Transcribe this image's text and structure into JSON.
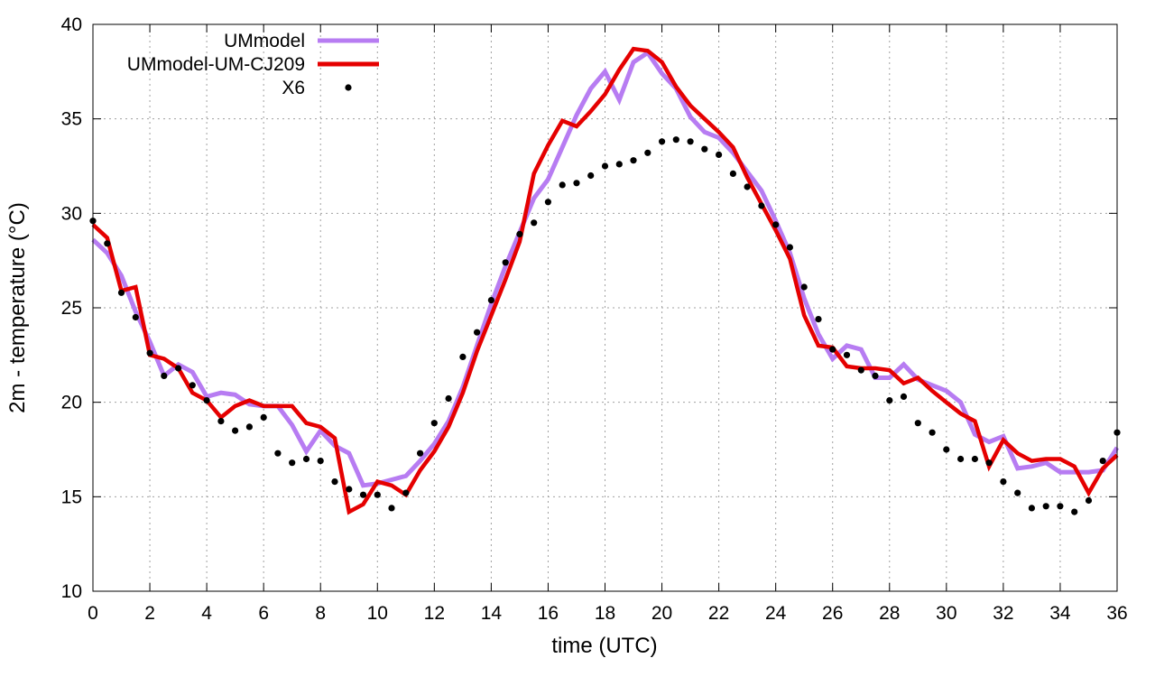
{
  "chart_data": {
    "type": "line",
    "xlabel": "time (UTC)",
    "ylabel": "2m - temperature (°C)",
    "xlim": [
      0,
      36
    ],
    "ylim": [
      10,
      40
    ],
    "xticks": [
      0,
      2,
      4,
      6,
      8,
      10,
      12,
      14,
      16,
      18,
      20,
      22,
      24,
      26,
      28,
      30,
      32,
      34,
      36
    ],
    "yticks": [
      10,
      15,
      20,
      25,
      30,
      35,
      40
    ],
    "grid": true,
    "legend_position": "top-left inside",
    "series": [
      {
        "name": "UMmodel",
        "style": "line",
        "color": "#b77cf2",
        "x": [
          0,
          0.5,
          1,
          1.5,
          2,
          2.5,
          3,
          3.5,
          4,
          4.5,
          5,
          5.5,
          6,
          6.5,
          7,
          7.5,
          8,
          8.5,
          9,
          9.5,
          10,
          10.5,
          11,
          11.5,
          12,
          12.5,
          13,
          13.5,
          14,
          14.5,
          15,
          15.5,
          16,
          16.5,
          17,
          17.5,
          18,
          18.5,
          19,
          19.5,
          20,
          20.5,
          21,
          21.5,
          22,
          22.5,
          23,
          23.5,
          24,
          24.5,
          25,
          25.5,
          26,
          26.5,
          27,
          27.5,
          28,
          28.5,
          29,
          29.5,
          30,
          30.5,
          31,
          31.5,
          32,
          32.5,
          33,
          33.5,
          34,
          34.5,
          35,
          35.5,
          36
        ],
        "y": [
          28.6,
          27.9,
          26.7,
          24.8,
          23.2,
          21.4,
          22.0,
          21.6,
          20.3,
          20.5,
          20.4,
          19.9,
          19.8,
          19.8,
          18.8,
          17.4,
          18.5,
          17.7,
          17.3,
          15.6,
          15.7,
          15.9,
          16.1,
          16.9,
          17.8,
          19.0,
          20.8,
          23.0,
          25.2,
          27.2,
          29.0,
          30.8,
          31.8,
          33.5,
          35.2,
          36.6,
          37.5,
          36.0,
          38.0,
          38.5,
          37.4,
          36.6,
          35.1,
          34.3,
          34.0,
          33.2,
          32.2,
          31.2,
          29.6,
          27.9,
          25.5,
          23.6,
          22.3,
          23.0,
          22.8,
          21.3,
          21.3,
          22.0,
          21.2,
          20.9,
          20.6,
          20.0,
          18.3,
          17.9,
          18.2,
          16.5,
          16.6,
          16.8,
          16.3,
          16.3,
          16.3,
          16.4,
          17.6
        ]
      },
      {
        "name": "UMmodel-UM-CJ209",
        "style": "line",
        "color": "#e50000",
        "x": [
          0,
          0.5,
          1,
          1.5,
          2,
          2.5,
          3,
          3.5,
          4,
          4.5,
          5,
          5.5,
          6,
          6.5,
          7,
          7.5,
          8,
          8.5,
          9,
          9.5,
          10,
          10.5,
          11,
          11.5,
          12,
          12.5,
          13,
          13.5,
          14,
          14.5,
          15,
          15.5,
          16,
          16.5,
          17,
          17.5,
          18,
          18.5,
          19,
          19.5,
          20,
          20.5,
          21,
          21.5,
          22,
          22.5,
          23,
          23.5,
          24,
          24.5,
          25,
          25.5,
          26,
          26.5,
          27,
          27.5,
          28,
          28.5,
          29,
          29.5,
          30,
          30.5,
          31,
          31.5,
          32,
          32.5,
          33,
          33.5,
          34,
          34.5,
          35,
          35.5,
          36
        ],
        "y": [
          29.4,
          28.7,
          25.9,
          26.1,
          22.5,
          22.3,
          21.8,
          20.5,
          20.1,
          19.2,
          19.8,
          20.1,
          19.8,
          19.8,
          19.8,
          18.9,
          18.7,
          18.1,
          14.2,
          14.6,
          15.8,
          15.6,
          15.1,
          16.4,
          17.4,
          18.7,
          20.5,
          22.7,
          24.6,
          26.5,
          28.5,
          32.1,
          33.6,
          34.9,
          34.6,
          35.4,
          36.3,
          37.6,
          38.7,
          38.6,
          38.0,
          36.7,
          35.7,
          35.0,
          34.3,
          33.5,
          31.9,
          30.5,
          29.1,
          27.6,
          24.6,
          23.0,
          22.9,
          21.9,
          21.8,
          21.8,
          21.7,
          21.0,
          21.3,
          20.6,
          20.0,
          19.4,
          19.0,
          16.6,
          18.0,
          17.3,
          16.9,
          17.0,
          17.0,
          16.6,
          15.2,
          16.5,
          17.2
        ]
      },
      {
        "name": "X6",
        "style": "points",
        "color": "#000000",
        "x": [
          0,
          0.5,
          1,
          1.5,
          2,
          2.5,
          3,
          3.5,
          4,
          4.5,
          5,
          5.5,
          6,
          6.5,
          7,
          7.5,
          8,
          8.5,
          9,
          9.5,
          10,
          10.5,
          11,
          11.5,
          12,
          12.5,
          13,
          13.5,
          14,
          14.5,
          15,
          15.5,
          16,
          16.5,
          17,
          17.5,
          18,
          18.5,
          19,
          19.5,
          20,
          20.5,
          21,
          21.5,
          22,
          22.5,
          23,
          23.5,
          24,
          24.5,
          25,
          25.5,
          26,
          26.5,
          27,
          27.5,
          28,
          28.5,
          29,
          29.5,
          30,
          30.5,
          31,
          31.5,
          32,
          32.5,
          33,
          33.5,
          34,
          34.5,
          35,
          35.5,
          36
        ],
        "y": [
          29.6,
          28.4,
          25.8,
          24.5,
          22.6,
          21.4,
          21.8,
          20.9,
          20.1,
          19.0,
          18.5,
          18.7,
          19.2,
          17.3,
          16.8,
          17.0,
          16.9,
          15.8,
          15.4,
          15.1,
          15.1,
          14.4,
          15.2,
          17.3,
          18.9,
          20.2,
          22.4,
          23.7,
          25.4,
          27.4,
          28.9,
          29.5,
          30.6,
          31.5,
          31.6,
          32.0,
          32.5,
          32.6,
          32.8,
          33.2,
          33.8,
          33.9,
          33.8,
          33.4,
          33.1,
          32.1,
          31.4,
          30.4,
          29.4,
          28.2,
          26.1,
          24.4,
          22.8,
          22.5,
          21.7,
          21.4,
          20.1,
          20.3,
          18.9,
          18.4,
          17.5,
          17.0,
          17.0,
          16.8,
          15.8,
          15.2,
          14.4,
          14.5,
          14.5,
          14.2,
          14.8,
          16.9,
          18.4
        ]
      }
    ]
  }
}
